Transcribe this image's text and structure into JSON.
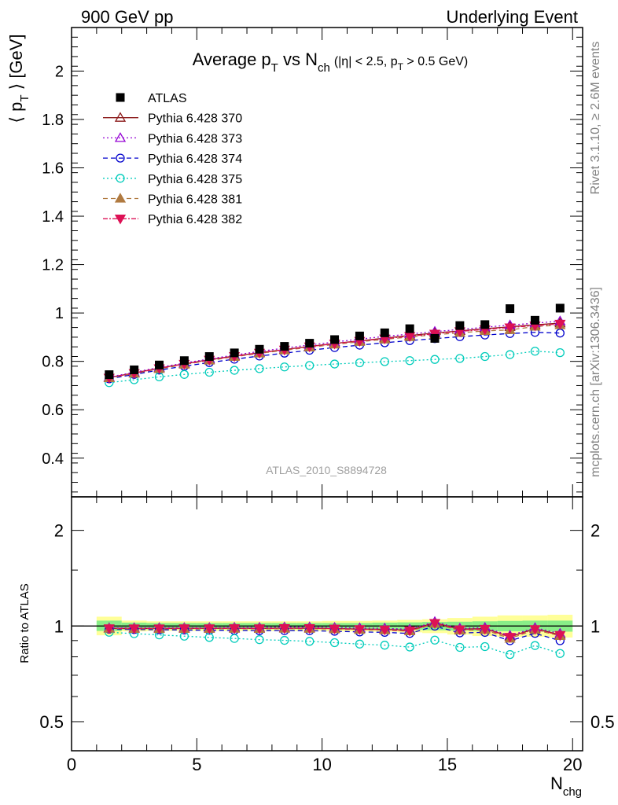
{
  "header": {
    "left": "900 GeV pp",
    "right": "Underlying Event"
  },
  "side_labels": {
    "rivet": "Rivet 3.1.10, ≥ 2.6M events",
    "mcplots": "mcplots.cern.ch [arXiv:1306.3436]"
  },
  "chart_data": [
    {
      "type": "scatter",
      "panel": "main",
      "title": {
        "main": "Average p",
        "sub1": "T",
        "vs": " vs N",
        "sub2": "ch",
        "cut": "(|η| < 2.5, p",
        "sub3": "T",
        "cut2": " > 0.5 GeV)"
      },
      "ylabel": {
        "open": "⟨ p",
        "sub": "T",
        "close": " ⟩ [GeV]"
      },
      "watermark": "ATLAS_2010_S8894728",
      "xlim": [
        0,
        20.4
      ],
      "ylim": [
        0.24,
        2.18
      ],
      "yticks": [
        0.4,
        0.6,
        0.8,
        1,
        1.2,
        1.4,
        1.6,
        1.8,
        2
      ],
      "ytick_labels": [
        "0.4",
        "0.6",
        "0.8",
        "1",
        "1.2",
        "1.4",
        "1.6",
        "1.8",
        "2"
      ],
      "x": [
        1.5,
        2.5,
        3.5,
        4.5,
        5.5,
        6.5,
        7.5,
        8.5,
        9.5,
        10.5,
        11.5,
        12.5,
        13.5,
        14.5,
        15.5,
        16.5,
        17.5,
        18.5,
        19.5
      ],
      "data": {
        "name": "ATLAS",
        "values": [
          0.745,
          0.765,
          0.785,
          0.803,
          0.82,
          0.835,
          0.85,
          0.862,
          0.875,
          0.89,
          0.905,
          0.918,
          0.935,
          0.895,
          0.948,
          0.952,
          1.018,
          0.97,
          1.02
        ]
      },
      "series": [
        {
          "name": "Pythia 6.428 370",
          "color": "#8b1a1a",
          "dash": "",
          "marker": "triangle-up-open",
          "values": [
            0.733,
            0.752,
            0.772,
            0.79,
            0.807,
            0.822,
            0.836,
            0.849,
            0.862,
            0.874,
            0.885,
            0.896,
            0.907,
            0.917,
            0.926,
            0.935,
            0.943,
            0.951,
            0.958
          ]
        },
        {
          "name": "Pythia 6.428 373",
          "color": "#9400d3",
          "dash": "2,3",
          "marker": "triangle-up-open",
          "values": [
            0.735,
            0.755,
            0.775,
            0.793,
            0.81,
            0.826,
            0.841,
            0.855,
            0.868,
            0.88,
            0.892,
            0.903,
            0.913,
            0.923,
            0.932,
            0.941,
            0.95,
            0.958,
            0.966
          ]
        },
        {
          "name": "Pythia 6.428 374",
          "color": "#0000cc",
          "dash": "6,4",
          "marker": "circle-open",
          "values": [
            0.728,
            0.746,
            0.764,
            0.78,
            0.795,
            0.809,
            0.822,
            0.834,
            0.846,
            0.857,
            0.867,
            0.877,
            0.886,
            0.894,
            0.902,
            0.909,
            0.915,
            0.92,
            0.917
          ]
        },
        {
          "name": "Pythia 6.428 375",
          "color": "#00ccbb",
          "dash": "2,3",
          "marker": "circle-open",
          "values": [
            0.712,
            0.724,
            0.736,
            0.746,
            0.755,
            0.763,
            0.77,
            0.777,
            0.783,
            0.789,
            0.794,
            0.799,
            0.803,
            0.808,
            0.812,
            0.82,
            0.828,
            0.842,
            0.836
          ]
        },
        {
          "name": "Pythia 6.428 381",
          "color": "#b07a40",
          "dash": "6,4",
          "marker": "triangle-up-filled",
          "values": [
            0.731,
            0.75,
            0.769,
            0.787,
            0.804,
            0.819,
            0.833,
            0.846,
            0.858,
            0.87,
            0.881,
            0.891,
            0.901,
            0.91,
            0.918,
            0.926,
            0.93,
            0.944,
            0.95
          ]
        },
        {
          "name": "Pythia 6.428 382",
          "color": "#dd1155",
          "dash": "6,2,2,2",
          "marker": "triangle-down-filled",
          "values": [
            0.732,
            0.751,
            0.771,
            0.789,
            0.806,
            0.821,
            0.835,
            0.848,
            0.861,
            0.873,
            0.884,
            0.894,
            0.904,
            0.914,
            0.924,
            0.932,
            0.94,
            0.948,
            0.955
          ]
        }
      ],
      "legend_placement": "top-left"
    },
    {
      "type": "scatter",
      "panel": "ratio",
      "ylabel": "Ratio to ATLAS",
      "xlabel": {
        "main": "N",
        "sub": "chg"
      },
      "ylim_log": [
        0.405,
        2.55
      ],
      "yticks": [
        0.5,
        1,
        2
      ],
      "ytick_labels": [
        "0.5",
        "1",
        "2"
      ],
      "xticks": [
        0,
        5,
        10,
        15,
        20
      ],
      "xtick_labels": [
        "0",
        "5",
        "10",
        "15",
        "20"
      ],
      "x_edges": [
        1,
        2,
        3,
        4,
        5,
        6,
        7,
        8,
        9,
        10,
        11,
        12,
        13,
        14,
        15,
        16,
        17,
        18,
        19,
        20
      ],
      "band_yellow": {
        "color": "#ffff99",
        "low": [
          0.935,
          0.962,
          0.965,
          0.965,
          0.965,
          0.965,
          0.965,
          0.965,
          0.965,
          0.962,
          0.962,
          0.96,
          0.955,
          0.95,
          0.94,
          0.93,
          0.925,
          0.925,
          0.92
        ],
        "high": [
          1.07,
          1.04,
          1.035,
          1.035,
          1.035,
          1.035,
          1.035,
          1.035,
          1.035,
          1.038,
          1.038,
          1.04,
          1.045,
          1.05,
          1.06,
          1.07,
          1.08,
          1.08,
          1.085
        ]
      },
      "band_green": {
        "color": "#88ee88",
        "low": [
          0.965,
          0.975,
          0.978,
          0.978,
          0.978,
          0.978,
          0.978,
          0.978,
          0.978,
          0.978,
          0.978,
          0.975,
          0.973,
          0.97,
          0.968,
          0.965,
          0.962,
          0.96,
          0.96
        ],
        "high": [
          1.04,
          1.025,
          1.022,
          1.022,
          1.022,
          1.022,
          1.022,
          1.022,
          1.022,
          1.022,
          1.022,
          1.025,
          1.027,
          1.03,
          1.032,
          1.035,
          1.038,
          1.04,
          1.04
        ]
      }
    }
  ]
}
